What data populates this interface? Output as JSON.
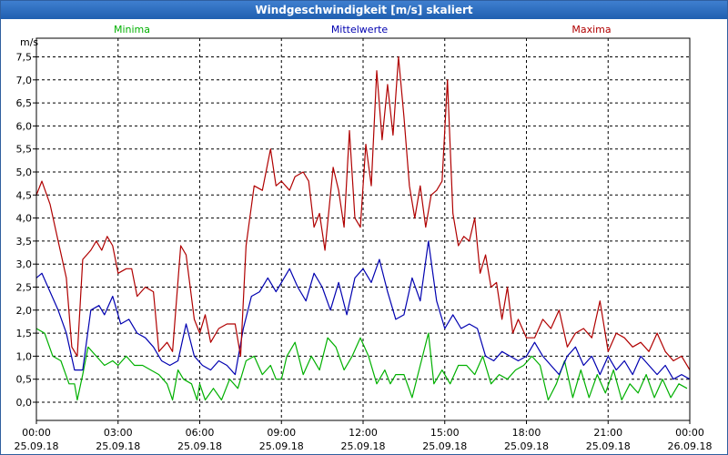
{
  "window": {
    "title": "Windgeschwindigkeit [m/s] skaliert"
  },
  "chart_data": {
    "type": "line",
    "title": "Windgeschwindigkeit [m/s] skaliert",
    "ylabel": "m/s",
    "ylim": [
      0,
      7.6
    ],
    "xlim": [
      0,
      24
    ],
    "grid": true,
    "yticks": [
      "0,0",
      "0,5",
      "1,0",
      "1,5",
      "2,0",
      "2,5",
      "3,0",
      "3,5",
      "4,0",
      "4,5",
      "5,0",
      "5,5",
      "6,0",
      "6,5",
      "7,0",
      "7,5"
    ],
    "xticks": [
      {
        "time": "00:00",
        "date": "25.09.18"
      },
      {
        "time": "03:00",
        "date": "25.09.18"
      },
      {
        "time": "06:00",
        "date": "25.09.18"
      },
      {
        "time": "09:00",
        "date": "25.09.18"
      },
      {
        "time": "12:00",
        "date": "25.09.18"
      },
      {
        "time": "15:00",
        "date": "25.09.18"
      },
      {
        "time": "18:00",
        "date": "25.09.18"
      },
      {
        "time": "21:00",
        "date": "25.09.18"
      },
      {
        "time": "00:00",
        "date": "26.09.18"
      }
    ],
    "x_unit": "hours since 00:00 25.09.18",
    "series": [
      {
        "name": "Minima",
        "color": "#00b000",
        "points": [
          [
            0.0,
            1.6
          ],
          [
            0.3,
            1.5
          ],
          [
            0.6,
            1.0
          ],
          [
            0.9,
            0.9
          ],
          [
            1.2,
            0.4
          ],
          [
            1.4,
            0.4
          ],
          [
            1.5,
            0.05
          ],
          [
            1.7,
            0.6
          ],
          [
            1.9,
            1.2
          ],
          [
            2.2,
            1.0
          ],
          [
            2.5,
            0.8
          ],
          [
            2.8,
            0.9
          ],
          [
            3.0,
            0.8
          ],
          [
            3.3,
            1.0
          ],
          [
            3.6,
            0.8
          ],
          [
            3.9,
            0.8
          ],
          [
            4.2,
            0.7
          ],
          [
            4.5,
            0.6
          ],
          [
            4.8,
            0.4
          ],
          [
            5.0,
            0.05
          ],
          [
            5.2,
            0.7
          ],
          [
            5.4,
            0.5
          ],
          [
            5.7,
            0.4
          ],
          [
            5.9,
            0.05
          ],
          [
            6.0,
            0.4
          ],
          [
            6.2,
            0.05
          ],
          [
            6.5,
            0.3
          ],
          [
            6.8,
            0.05
          ],
          [
            7.1,
            0.5
          ],
          [
            7.4,
            0.3
          ],
          [
            7.7,
            0.9
          ],
          [
            8.0,
            1.0
          ],
          [
            8.3,
            0.6
          ],
          [
            8.6,
            0.8
          ],
          [
            8.8,
            0.5
          ],
          [
            9.0,
            0.5
          ],
          [
            9.2,
            1.0
          ],
          [
            9.5,
            1.3
          ],
          [
            9.8,
            0.6
          ],
          [
            10.1,
            1.0
          ],
          [
            10.4,
            0.7
          ],
          [
            10.7,
            1.4
          ],
          [
            11.0,
            1.2
          ],
          [
            11.3,
            0.7
          ],
          [
            11.6,
            1.0
          ],
          [
            11.9,
            1.4
          ],
          [
            12.2,
            1.0
          ],
          [
            12.5,
            0.4
          ],
          [
            12.8,
            0.7
          ],
          [
            13.0,
            0.4
          ],
          [
            13.2,
            0.6
          ],
          [
            13.5,
            0.6
          ],
          [
            13.8,
            0.1
          ],
          [
            14.1,
            0.8
          ],
          [
            14.4,
            1.5
          ],
          [
            14.6,
            0.4
          ],
          [
            14.9,
            0.7
          ],
          [
            15.2,
            0.4
          ],
          [
            15.5,
            0.8
          ],
          [
            15.8,
            0.8
          ],
          [
            16.1,
            0.6
          ],
          [
            16.4,
            1.0
          ],
          [
            16.7,
            0.4
          ],
          [
            17.0,
            0.6
          ],
          [
            17.3,
            0.5
          ],
          [
            17.6,
            0.7
          ],
          [
            17.9,
            0.8
          ],
          [
            18.2,
            1.0
          ],
          [
            18.5,
            0.8
          ],
          [
            18.8,
            0.05
          ],
          [
            19.1,
            0.4
          ],
          [
            19.4,
            0.9
          ],
          [
            19.7,
            0.1
          ],
          [
            20.0,
            0.7
          ],
          [
            20.3,
            0.1
          ],
          [
            20.6,
            0.6
          ],
          [
            20.9,
            0.2
          ],
          [
            21.2,
            0.7
          ],
          [
            21.5,
            0.05
          ],
          [
            21.8,
            0.4
          ],
          [
            22.1,
            0.2
          ],
          [
            22.4,
            0.6
          ],
          [
            22.7,
            0.1
          ],
          [
            23.0,
            0.5
          ],
          [
            23.3,
            0.1
          ],
          [
            23.6,
            0.4
          ],
          [
            23.9,
            0.3
          ]
        ]
      },
      {
        "name": "Mittelwerte",
        "color": "#0000b0",
        "points": [
          [
            0.0,
            2.7
          ],
          [
            0.2,
            2.8
          ],
          [
            0.5,
            2.4
          ],
          [
            0.8,
            2.0
          ],
          [
            1.1,
            1.5
          ],
          [
            1.4,
            0.7
          ],
          [
            1.7,
            0.7
          ],
          [
            2.0,
            2.0
          ],
          [
            2.3,
            2.1
          ],
          [
            2.5,
            1.9
          ],
          [
            2.8,
            2.3
          ],
          [
            3.1,
            1.7
          ],
          [
            3.4,
            1.8
          ],
          [
            3.7,
            1.5
          ],
          [
            4.0,
            1.4
          ],
          [
            4.3,
            1.2
          ],
          [
            4.6,
            0.9
          ],
          [
            4.9,
            0.8
          ],
          [
            5.2,
            0.9
          ],
          [
            5.5,
            1.7
          ],
          [
            5.8,
            1.0
          ],
          [
            6.1,
            0.8
          ],
          [
            6.4,
            0.7
          ],
          [
            6.7,
            0.9
          ],
          [
            7.0,
            0.8
          ],
          [
            7.3,
            0.6
          ],
          [
            7.6,
            1.6
          ],
          [
            7.9,
            2.3
          ],
          [
            8.2,
            2.4
          ],
          [
            8.5,
            2.7
          ],
          [
            8.8,
            2.4
          ],
          [
            9.0,
            2.6
          ],
          [
            9.3,
            2.9
          ],
          [
            9.6,
            2.5
          ],
          [
            9.9,
            2.2
          ],
          [
            10.2,
            2.8
          ],
          [
            10.5,
            2.5
          ],
          [
            10.8,
            2.0
          ],
          [
            11.1,
            2.6
          ],
          [
            11.4,
            1.9
          ],
          [
            11.7,
            2.7
          ],
          [
            12.0,
            2.9
          ],
          [
            12.3,
            2.6
          ],
          [
            12.6,
            3.1
          ],
          [
            12.9,
            2.4
          ],
          [
            13.2,
            1.8
          ],
          [
            13.5,
            1.9
          ],
          [
            13.8,
            2.7
          ],
          [
            14.1,
            2.2
          ],
          [
            14.4,
            3.5
          ],
          [
            14.7,
            2.2
          ],
          [
            15.0,
            1.6
          ],
          [
            15.3,
            1.9
          ],
          [
            15.6,
            1.6
          ],
          [
            15.9,
            1.7
          ],
          [
            16.2,
            1.6
          ],
          [
            16.5,
            1.0
          ],
          [
            16.8,
            0.9
          ],
          [
            17.1,
            1.1
          ],
          [
            17.4,
            1.0
          ],
          [
            17.7,
            0.9
          ],
          [
            18.0,
            1.0
          ],
          [
            18.3,
            1.3
          ],
          [
            18.6,
            1.0
          ],
          [
            18.9,
            0.8
          ],
          [
            19.2,
            0.6
          ],
          [
            19.5,
            1.0
          ],
          [
            19.8,
            1.2
          ],
          [
            20.1,
            0.8
          ],
          [
            20.4,
            1.0
          ],
          [
            20.7,
            0.6
          ],
          [
            21.0,
            1.0
          ],
          [
            21.3,
            0.7
          ],
          [
            21.6,
            0.9
          ],
          [
            21.9,
            0.6
          ],
          [
            22.2,
            1.0
          ],
          [
            22.5,
            0.8
          ],
          [
            22.8,
            0.6
          ],
          [
            23.1,
            0.8
          ],
          [
            23.4,
            0.5
          ],
          [
            23.7,
            0.6
          ],
          [
            24.0,
            0.5
          ]
        ]
      },
      {
        "name": "Maxima",
        "color": "#b00000",
        "points": [
          [
            0.0,
            4.5
          ],
          [
            0.2,
            4.8
          ],
          [
            0.5,
            4.3
          ],
          [
            0.8,
            3.5
          ],
          [
            1.1,
            2.7
          ],
          [
            1.3,
            1.2
          ],
          [
            1.5,
            1.0
          ],
          [
            1.7,
            3.1
          ],
          [
            2.0,
            3.3
          ],
          [
            2.2,
            3.5
          ],
          [
            2.4,
            3.3
          ],
          [
            2.6,
            3.6
          ],
          [
            2.8,
            3.4
          ],
          [
            3.0,
            2.8
          ],
          [
            3.3,
            2.9
          ],
          [
            3.5,
            2.9
          ],
          [
            3.7,
            2.3
          ],
          [
            4.0,
            2.5
          ],
          [
            4.3,
            2.4
          ],
          [
            4.5,
            1.1
          ],
          [
            4.8,
            1.3
          ],
          [
            5.0,
            1.1
          ],
          [
            5.3,
            3.4
          ],
          [
            5.5,
            3.2
          ],
          [
            5.8,
            1.8
          ],
          [
            6.0,
            1.5
          ],
          [
            6.2,
            1.9
          ],
          [
            6.4,
            1.3
          ],
          [
            6.7,
            1.6
          ],
          [
            7.0,
            1.7
          ],
          [
            7.3,
            1.7
          ],
          [
            7.5,
            1.0
          ],
          [
            7.7,
            3.4
          ],
          [
            8.0,
            4.7
          ],
          [
            8.3,
            4.6
          ],
          [
            8.6,
            5.5
          ],
          [
            8.8,
            4.7
          ],
          [
            9.0,
            4.8
          ],
          [
            9.3,
            4.6
          ],
          [
            9.5,
            4.9
          ],
          [
            9.8,
            5.0
          ],
          [
            10.0,
            4.8
          ],
          [
            10.2,
            3.8
          ],
          [
            10.4,
            4.1
          ],
          [
            10.6,
            3.3
          ],
          [
            10.9,
            5.1
          ],
          [
            11.1,
            4.6
          ],
          [
            11.3,
            3.8
          ],
          [
            11.5,
            5.9
          ],
          [
            11.7,
            4.0
          ],
          [
            11.9,
            3.8
          ],
          [
            12.1,
            5.6
          ],
          [
            12.3,
            4.7
          ],
          [
            12.5,
            7.2
          ],
          [
            12.7,
            5.7
          ],
          [
            12.9,
            6.9
          ],
          [
            13.1,
            5.8
          ],
          [
            13.3,
            7.5
          ],
          [
            13.5,
            6.2
          ],
          [
            13.7,
            4.7
          ],
          [
            13.9,
            4.0
          ],
          [
            14.1,
            4.7
          ],
          [
            14.3,
            3.8
          ],
          [
            14.5,
            4.5
          ],
          [
            14.7,
            4.6
          ],
          [
            14.9,
            4.8
          ],
          [
            15.1,
            7.0
          ],
          [
            15.3,
            4.1
          ],
          [
            15.5,
            3.4
          ],
          [
            15.7,
            3.6
          ],
          [
            15.9,
            3.5
          ],
          [
            16.1,
            4.0
          ],
          [
            16.3,
            2.8
          ],
          [
            16.5,
            3.2
          ],
          [
            16.7,
            2.5
          ],
          [
            16.9,
            2.6
          ],
          [
            17.1,
            1.8
          ],
          [
            17.3,
            2.5
          ],
          [
            17.5,
            1.5
          ],
          [
            17.7,
            1.8
          ],
          [
            18.0,
            1.4
          ],
          [
            18.3,
            1.4
          ],
          [
            18.6,
            1.8
          ],
          [
            18.9,
            1.6
          ],
          [
            19.2,
            2.0
          ],
          [
            19.5,
            1.2
          ],
          [
            19.8,
            1.5
          ],
          [
            20.1,
            1.6
          ],
          [
            20.4,
            1.4
          ],
          [
            20.7,
            2.2
          ],
          [
            21.0,
            1.1
          ],
          [
            21.3,
            1.5
          ],
          [
            21.6,
            1.4
          ],
          [
            21.9,
            1.2
          ],
          [
            22.2,
            1.3
          ],
          [
            22.5,
            1.1
          ],
          [
            22.8,
            1.5
          ],
          [
            23.1,
            1.1
          ],
          [
            23.4,
            0.9
          ],
          [
            23.7,
            1.0
          ],
          [
            24.0,
            0.7
          ]
        ]
      }
    ]
  }
}
